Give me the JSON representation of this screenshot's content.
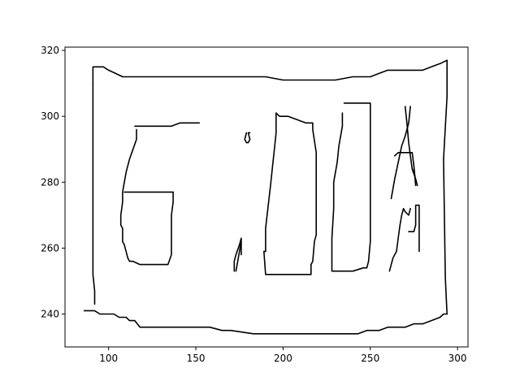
{
  "chart_data": {
    "type": "line",
    "title": "",
    "xlabel": "",
    "ylabel": "",
    "xlim": [
      75,
      306
    ],
    "ylim": [
      230,
      321
    ],
    "grid": false,
    "legend": "none",
    "x_ticks": [
      100,
      150,
      200,
      250,
      300
    ],
    "y_ticks": [
      240,
      260,
      280,
      300,
      320
    ],
    "line_color": "#000000",
    "series": [
      {
        "x": [
          91,
          91,
          92,
          93,
          95,
          97,
          100,
          104,
          108,
          112,
          116,
          120,
          130,
          140,
          150,
          160,
          170,
          180,
          190,
          200,
          210,
          220,
          230,
          240,
          245,
          250,
          255,
          260,
          265,
          270,
          275,
          280,
          285,
          290,
          294
        ],
        "y": [
          310,
          315,
          315,
          315,
          315,
          315,
          314,
          313,
          312,
          312,
          312,
          312,
          312,
          312,
          312,
          312,
          312,
          312,
          312,
          311,
          311,
          311,
          311,
          312,
          312,
          312,
          313,
          314,
          314,
          314,
          314,
          314,
          315,
          316,
          317
        ]
      },
      {
        "x": [
          91,
          91,
          92,
          92
        ],
        "y": [
          310,
          252,
          247,
          243
        ]
      },
      {
        "x": [
          86,
          92,
          95,
          100,
          103,
          106,
          110,
          112,
          115,
          118,
          125,
          135,
          145,
          158,
          165,
          170,
          183,
          195,
          205,
          215,
          225,
          235,
          243,
          248,
          255,
          260,
          265,
          270,
          275,
          280,
          285,
          290,
          292,
          294
        ],
        "y": [
          241,
          241,
          240,
          240,
          240,
          239,
          239,
          238,
          238,
          236,
          236,
          236,
          236,
          236,
          235,
          235,
          234,
          234,
          234,
          234,
          234,
          234,
          234,
          235,
          235,
          236,
          236,
          236,
          237,
          237,
          238,
          239,
          240,
          240
        ]
      },
      {
        "x": [
          294,
          294,
          292,
          293,
          294
        ],
        "y": [
          317,
          306,
          287,
          251,
          240
        ]
      },
      {
        "x": [
          115,
          132,
          136,
          141,
          152
        ],
        "y": [
          297,
          297,
          297,
          298,
          298
        ]
      },
      {
        "x": [
          116,
          116,
          114,
          112,
          110,
          109,
          108,
          108,
          107,
          107,
          108,
          108,
          109,
          111,
          112,
          114,
          118,
          122,
          128,
          134,
          136,
          136,
          137,
          137
        ],
        "y": [
          296,
          293,
          290,
          287,
          283,
          280,
          277,
          274,
          270,
          267,
          266,
          262,
          261,
          257,
          256,
          256,
          255,
          255,
          255,
          255,
          258,
          270,
          274,
          277
        ]
      },
      {
        "x": [
          109,
          137
        ],
        "y": [
          277,
          277
        ]
      },
      {
        "x": [
          172,
          172,
          173,
          175,
          176,
          176
        ],
        "y": [
          253,
          256,
          258,
          261,
          263,
          258
        ]
      },
      {
        "x": [
          173,
          174,
          175,
          176
        ],
        "y": [
          253,
          256,
          259,
          262
        ]
      },
      {
        "x": [
          179,
          178,
          179,
          180,
          181,
          180,
          181
        ],
        "y": [
          295,
          293,
          292,
          292,
          293,
          295,
          295
        ]
      },
      {
        "x": [
          196,
          198,
          203,
          208,
          213,
          217,
          217,
          219,
          219,
          218,
          217,
          216,
          216,
          214,
          210,
          200,
          193,
          190,
          189,
          190,
          190,
          193,
          194,
          195,
          196,
          196
        ],
        "y": [
          301,
          300,
          300,
          299,
          298,
          298,
          296,
          289,
          264,
          262,
          256,
          255,
          252,
          252,
          252,
          252,
          252,
          252,
          259,
          259,
          266,
          280,
          285,
          290,
          295,
          301
        ]
      },
      {
        "x": [
          234,
          234,
          232,
          231,
          229,
          229,
          228,
          228,
          233,
          237,
          240,
          246,
          248,
          249
        ],
        "y": [
          301,
          297,
          291,
          286,
          280,
          272,
          263,
          253,
          253,
          253,
          253,
          254,
          254,
          256
        ]
      },
      {
        "x": [
          235,
          250,
          250,
          249
        ],
        "y": [
          304,
          304,
          262,
          256
        ]
      },
      {
        "x": [
          261,
          262,
          263,
          265,
          266,
          267,
          268,
          269,
          270,
          272,
          273
        ],
        "y": [
          253,
          255,
          257,
          259,
          263,
          267,
          270,
          272,
          271,
          270,
          272
        ]
      },
      {
        "x": [
          262,
          264,
          266,
          268,
          270,
          272,
          273
        ],
        "y": [
          275,
          281,
          286,
          291,
          294,
          298,
          303
        ]
      },
      {
        "x": [
          264,
          266,
          268,
          270,
          272,
          274,
          275,
          276
        ],
        "y": [
          288,
          289,
          289,
          289,
          289,
          289,
          285,
          279
        ]
      },
      {
        "x": [
          270,
          271,
          272,
          273,
          274,
          276,
          277
        ],
        "y": [
          303,
          298,
          292,
          288,
          284,
          281,
          279
        ]
      },
      {
        "x": [
          272,
          274,
          275,
          276,
          276,
          276,
          278,
          278
        ],
        "y": [
          265,
          265,
          265,
          267,
          271,
          273,
          273,
          259
        ]
      },
      {
        "x": [
          275,
          276
        ],
        "y": [
          284,
          280
        ]
      }
    ]
  }
}
